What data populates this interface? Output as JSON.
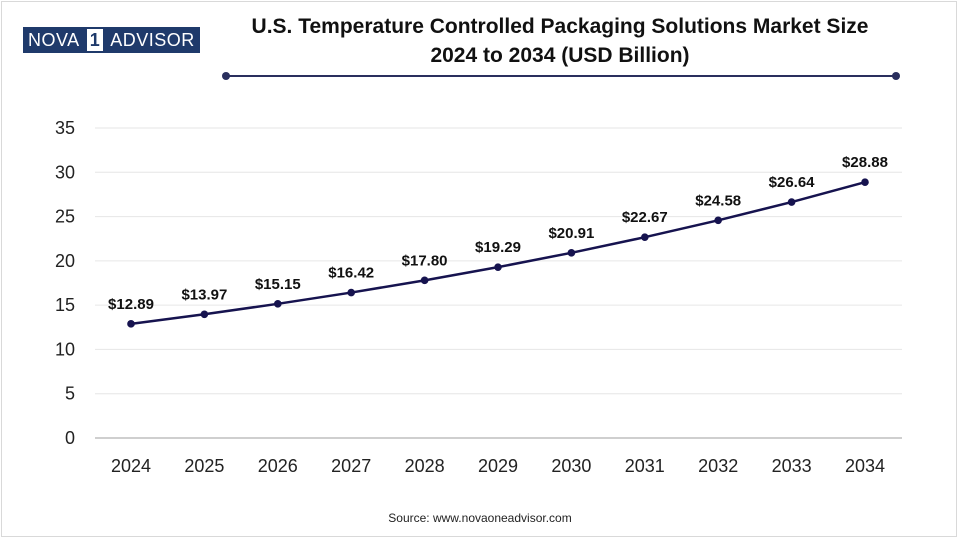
{
  "logo": {
    "left": "NOVA",
    "mid": "1",
    "right": "ADVISOR"
  },
  "title_line1": "U.S. Temperature Controlled Packaging Solutions Market Size",
  "title_line2": "2024 to 2034 (USD Billion)",
  "source": "Source: www.novaoneadvisor.com",
  "colors": {
    "line": "#16134f",
    "grid": "#e6e6e6",
    "axis": "#bfbfbf",
    "title_rule": "#2a2f5e"
  },
  "chart_data": {
    "type": "line",
    "title": "U.S. Temperature Controlled Packaging Solutions Market Size 2024 to 2034 (USD Billion)",
    "xlabel": "",
    "ylabel": "",
    "categories": [
      "2024",
      "2025",
      "2026",
      "2027",
      "2028",
      "2029",
      "2030",
      "2031",
      "2032",
      "2033",
      "2034"
    ],
    "values": [
      12.89,
      13.97,
      15.15,
      16.42,
      17.8,
      19.29,
      20.91,
      22.67,
      24.58,
      26.64,
      28.88
    ],
    "labels": [
      "$12.89",
      "$13.97",
      "$15.15",
      "$16.42",
      "$17.80",
      "$19.29",
      "$20.91",
      "$22.67",
      "$24.58",
      "$26.64",
      "$28.88"
    ],
    "yticks": [
      0,
      5,
      10,
      15,
      20,
      25,
      30,
      35
    ],
    "ylim": [
      0,
      35
    ],
    "grid": true
  }
}
